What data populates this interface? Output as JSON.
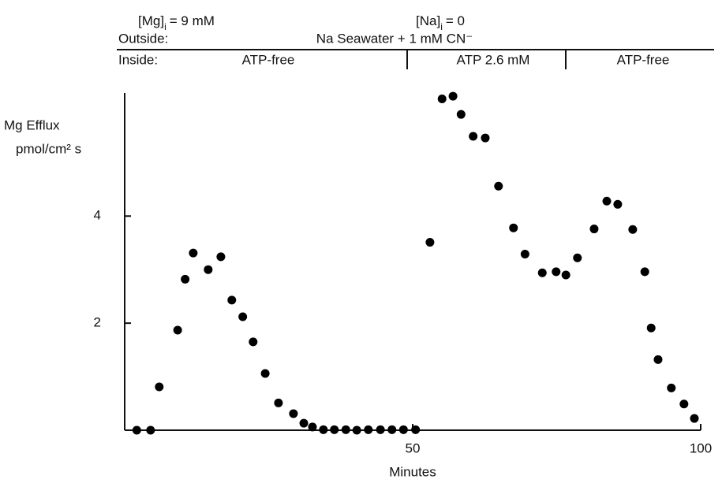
{
  "chart_data": {
    "type": "scatter",
    "header": {
      "mg": {
        "species": "[Mg]",
        "subscript": "i",
        "rest": "= 9 mM"
      },
      "na": {
        "species": "[Na]",
        "subscript": "i",
        "rest": "= 0"
      },
      "outside_label": "Outside:",
      "outside_condition": "Na Seawater + 1 mM CN⁻",
      "inside_label": "Inside:",
      "inside_conditions": [
        "ATP-free",
        "ATP 2.6 mM",
        "ATP-free"
      ]
    },
    "y_label": [
      "Mg Efflux",
      "pmol/cm² s"
    ],
    "x_label": "Minutes",
    "xlim": [
      0,
      100
    ],
    "xticks": [
      50,
      100
    ],
    "ylim": [
      0,
      6.3
    ],
    "yticks": [
      2,
      4
    ],
    "color": "#000000",
    "x": [
      2.1,
      4.5,
      6.0,
      9.2,
      10.5,
      11.9,
      14.5,
      16.7,
      18.6,
      20.5,
      22.3,
      24.4,
      26.7,
      29.3,
      31.1,
      32.6,
      34.5,
      36.4,
      38.4,
      40.3,
      42.3,
      44.4,
      46.4,
      48.4,
      50.5,
      53.0,
      55.1,
      57.0,
      58.4,
      60.5,
      62.6,
      64.9,
      67.5,
      69.5,
      72.5,
      74.9,
      76.6,
      78.6,
      81.5,
      83.7,
      85.6,
      88.2,
      90.3,
      91.4,
      92.6,
      94.9,
      97.1,
      98.9
    ],
    "values": [
      0,
      0,
      0.81,
      1.87,
      2.82,
      3.31,
      3.0,
      3.24,
      2.43,
      2.12,
      1.65,
      1.06,
      0.51,
      0.31,
      0.13,
      0.06,
      0.01,
      0.01,
      0.01,
      0,
      0.01,
      0.01,
      0.01,
      0.01,
      0.01,
      3.51,
      6.19,
      6.24,
      5.9,
      5.49,
      5.46,
      4.56,
      3.78,
      3.29,
      2.94,
      2.96,
      2.9,
      3.22,
      3.76,
      4.28,
      4.22,
      3.75,
      2.96,
      1.91,
      1.32,
      0.79,
      0.49,
      0.22
    ]
  }
}
